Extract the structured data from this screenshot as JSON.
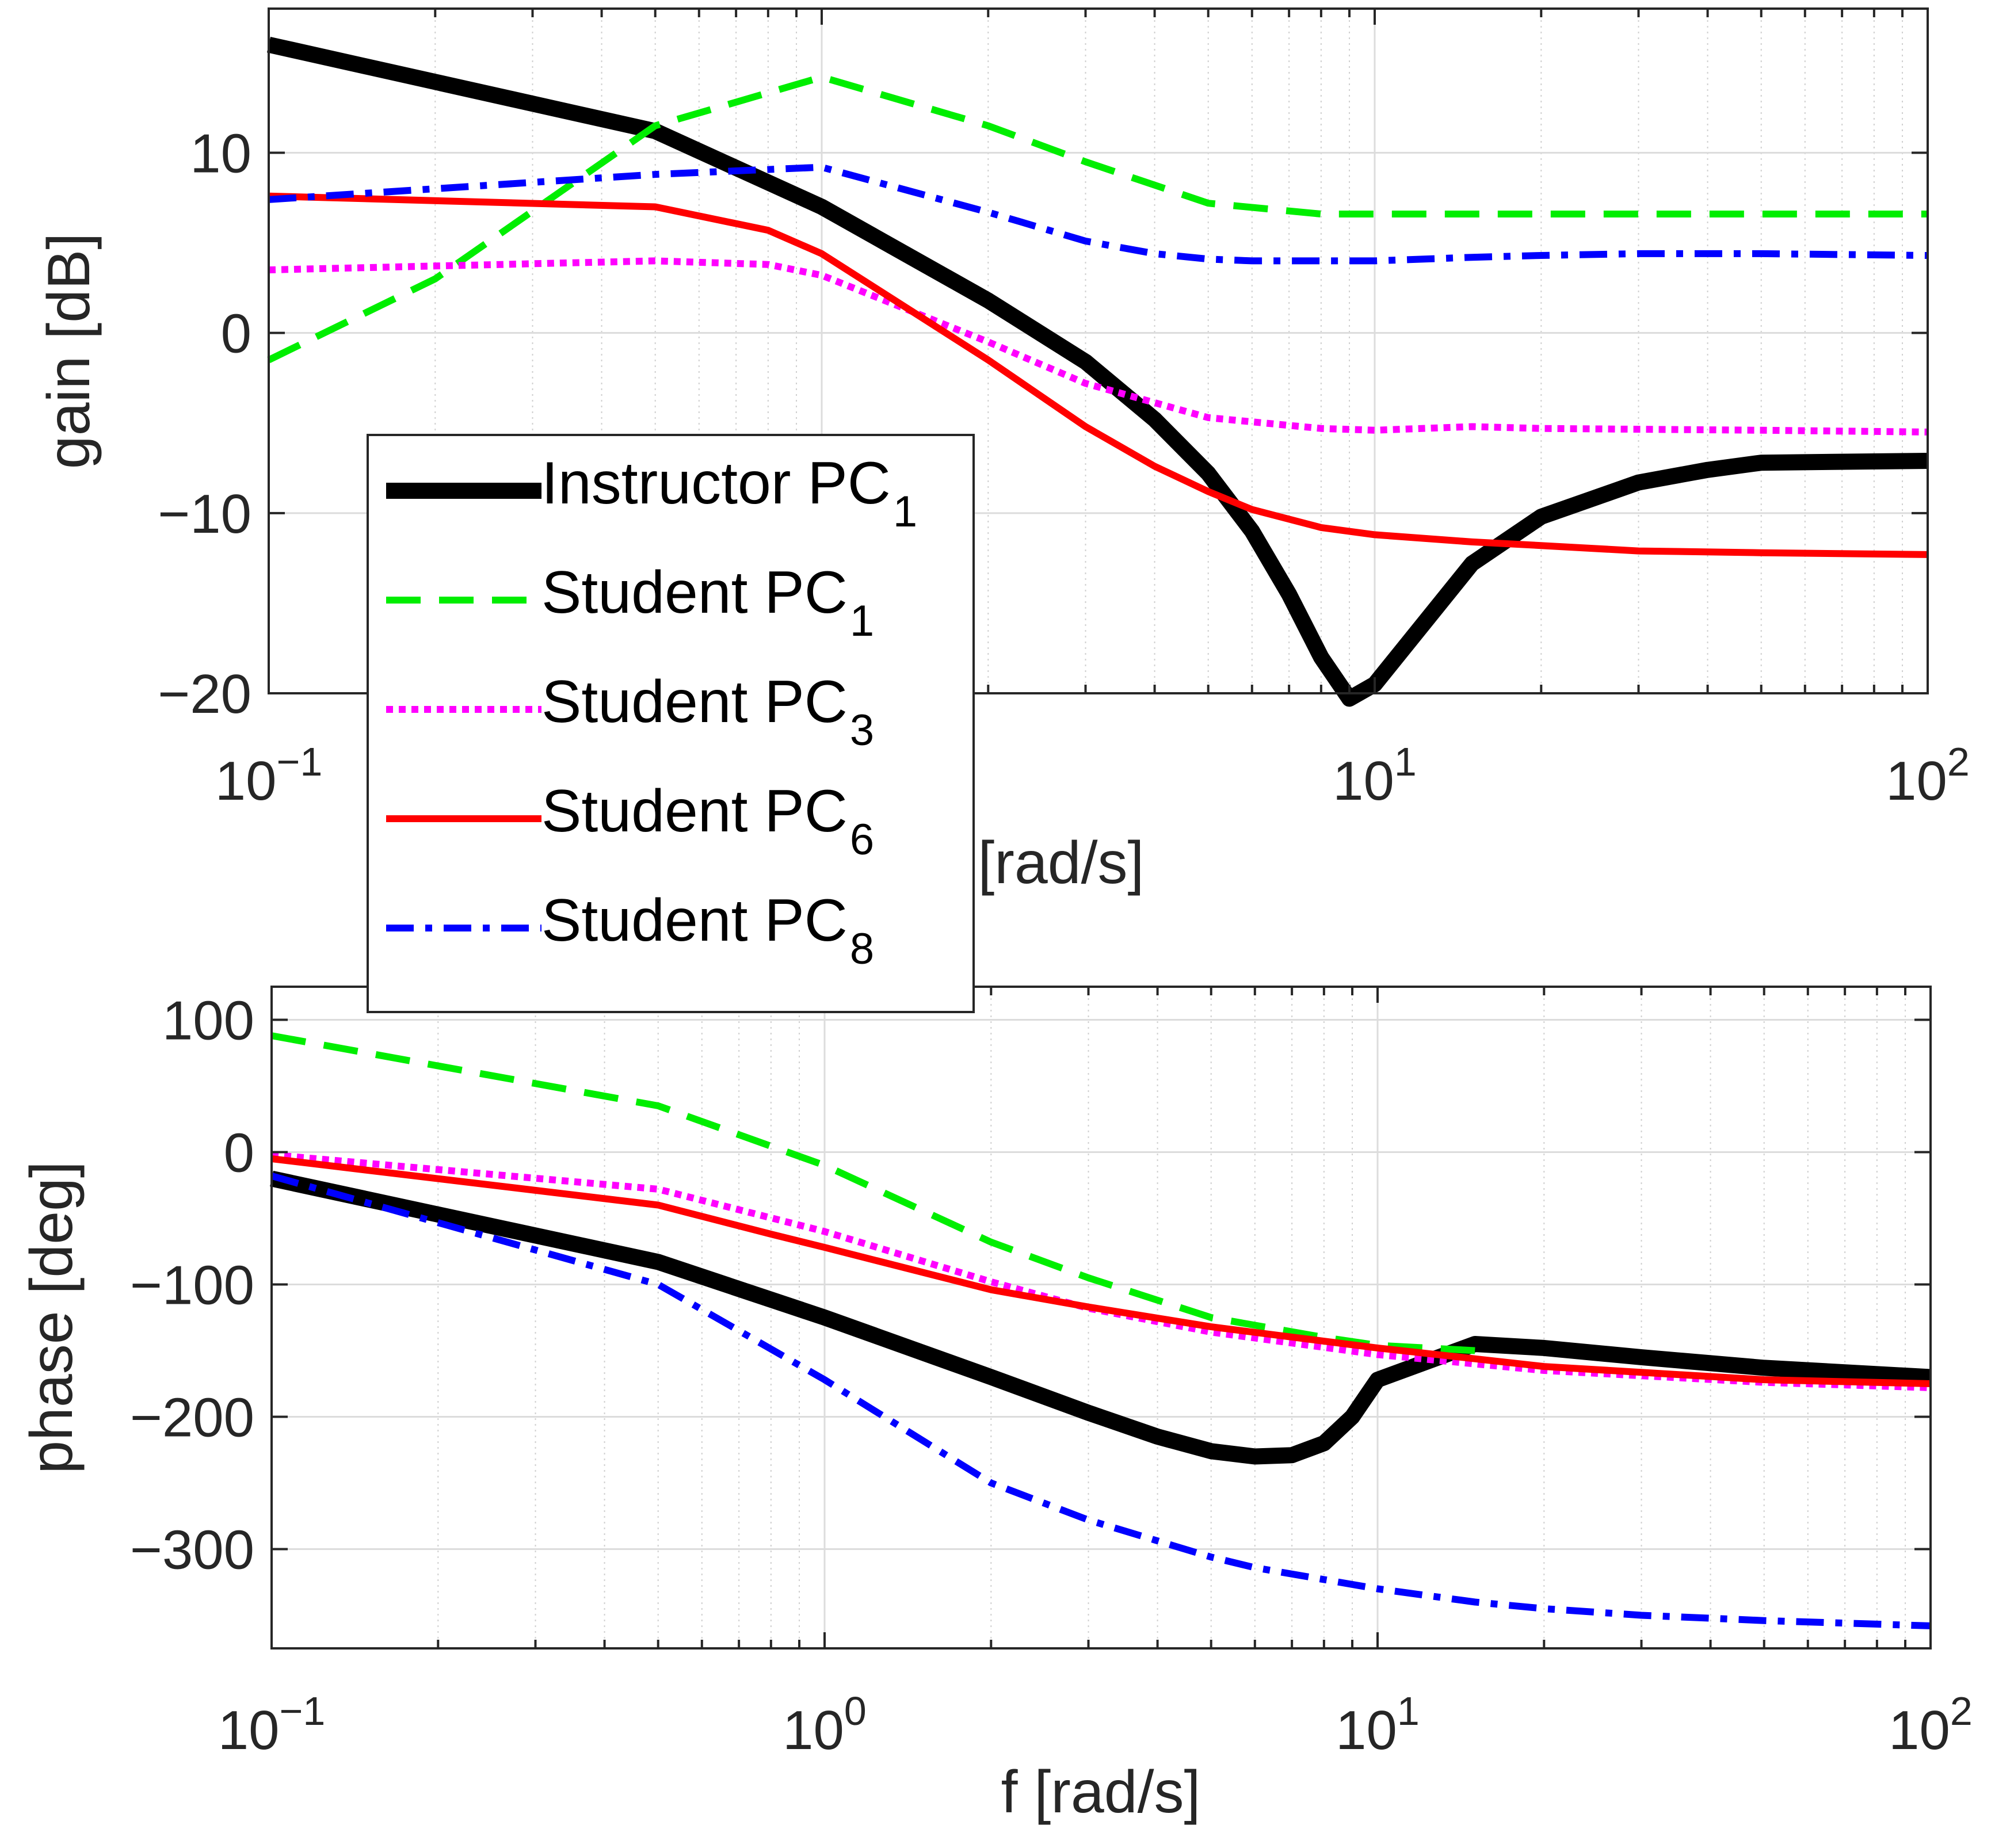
{
  "chart_data": [
    {
      "type": "line",
      "panel": "gain",
      "title": "",
      "xlabel": "f [rad/s]",
      "ylabel": "gain [dB]",
      "xscale": "log",
      "xlim": [
        0.1,
        100
      ],
      "ylim": [
        -20,
        18
      ],
      "grid": true,
      "x_tick_labels": [
        {
          "base": "10",
          "exp": "−1"
        },
        {
          "base": "10",
          "exp": "1"
        },
        {
          "base": "10",
          "exp": "2"
        }
      ],
      "y_tick_labels": [
        "−20",
        "−10",
        "0",
        "10"
      ],
      "series": [
        {
          "name": "Instructor PC1",
          "color": "#000000",
          "style": "solid",
          "width": "thick",
          "x": [
            0.1,
            0.5,
            1,
            2,
            3,
            4,
            5,
            6,
            7,
            8,
            9,
            10,
            15,
            20,
            30,
            40,
            50,
            100
          ],
          "y": [
            16,
            11.2,
            7,
            1.8,
            -1.6,
            -4.8,
            -7.8,
            -11,
            -14.5,
            -18,
            -20.3,
            -19.5,
            -12.8,
            -10.2,
            -8.3,
            -7.6,
            -7.2,
            -7.1
          ]
        },
        {
          "name": "Student PC1",
          "color": "#00ee00",
          "style": "dashed",
          "width": "normal",
          "x": [
            0.1,
            0.2,
            0.5,
            1,
            2,
            3,
            5,
            8,
            10,
            20,
            50,
            100
          ],
          "y": [
            -1.5,
            3,
            11.5,
            14.2,
            11.5,
            9.5,
            7.2,
            6.6,
            6.6,
            6.6,
            6.6,
            6.6
          ]
        },
        {
          "name": "Student PC3",
          "color": "#ff00ff",
          "style": "dotted",
          "width": "normal",
          "x": [
            0.1,
            0.5,
            0.8,
            1,
            2,
            3,
            5,
            8,
            10,
            15,
            20,
            50,
            100
          ],
          "y": [
            3.5,
            4,
            3.8,
            3.2,
            -0.5,
            -2.8,
            -4.7,
            -5.3,
            -5.4,
            -5.2,
            -5.3,
            -5.4,
            -5.5
          ]
        },
        {
          "name": "Student PC6",
          "color": "#ff0000",
          "style": "solid",
          "width": "normal",
          "x": [
            0.1,
            0.5,
            0.8,
            1,
            2,
            3,
            4,
            5,
            6,
            8,
            10,
            15,
            20,
            30,
            50,
            100
          ],
          "y": [
            7.6,
            7,
            5.7,
            4.4,
            -1.5,
            -5.2,
            -7.4,
            -8.8,
            -9.8,
            -10.8,
            -11.2,
            -11.6,
            -11.8,
            -12.1,
            -12.2,
            -12.3
          ]
        },
        {
          "name": "Student PC8",
          "color": "#0000ff",
          "style": "dash-dot",
          "width": "normal",
          "x": [
            0.1,
            0.5,
            1,
            2,
            3,
            4,
            5,
            6,
            8,
            10,
            15,
            20,
            30,
            50,
            100
          ],
          "y": [
            7.4,
            8.8,
            9.2,
            6.7,
            5.1,
            4.4,
            4.1,
            4,
            4,
            4,
            4.2,
            4.3,
            4.4,
            4.4,
            4.3
          ]
        }
      ]
    },
    {
      "type": "line",
      "panel": "phase",
      "title": "",
      "xlabel": "f [rad/s]",
      "ylabel": "phase [deg]",
      "xscale": "log",
      "xlim": [
        0.1,
        100
      ],
      "ylim": [
        -375,
        125
      ],
      "grid": true,
      "x_tick_labels": [
        {
          "base": "10",
          "exp": "−1"
        },
        {
          "base": "10",
          "exp": "0"
        },
        {
          "base": "10",
          "exp": "1"
        },
        {
          "base": "10",
          "exp": "2"
        }
      ],
      "y_tick_labels": [
        "−300",
        "−200",
        "−100",
        "0",
        "100"
      ],
      "series": [
        {
          "name": "Instructor PC1",
          "color": "#000000",
          "style": "solid",
          "width": "thick",
          "x": [
            0.1,
            0.5,
            1,
            2,
            3,
            4,
            5,
            6,
            7,
            8,
            9,
            10,
            15,
            20,
            30,
            50,
            100
          ],
          "y": [
            -20,
            -83,
            -125,
            -170,
            -197,
            -215,
            -226,
            -230,
            -229,
            -220,
            -200,
            -172,
            -145,
            -148,
            -155,
            -163,
            -170
          ]
        },
        {
          "name": "Student PC1",
          "color": "#00ee00",
          "style": "dashed",
          "width": "normal",
          "x": [
            0.1,
            0.5,
            1,
            2,
            3,
            5,
            8,
            10,
            15
          ],
          "y": [
            88,
            35,
            -10,
            -68,
            -95,
            -125,
            -140,
            -146,
            -150
          ]
        },
        {
          "name": "Student PC3",
          "color": "#ff00ff",
          "style": "dotted",
          "width": "normal",
          "x": [
            0.1,
            0.5,
            1,
            2,
            3,
            5,
            10,
            20,
            50,
            100
          ],
          "y": [
            -2,
            -28,
            -60,
            -98,
            -118,
            -136,
            -153,
            -165,
            -174,
            -178
          ]
        },
        {
          "name": "Student PC6",
          "color": "#ff0000",
          "style": "solid",
          "width": "normal",
          "x": [
            0.1,
            0.5,
            0.8,
            1,
            2,
            3,
            5,
            10,
            20,
            50,
            100
          ],
          "y": [
            -5,
            -40,
            -62,
            -72,
            -104,
            -117,
            -132,
            -148,
            -162,
            -172,
            -175
          ]
        },
        {
          "name": "Student PC8",
          "color": "#0000ff",
          "style": "dash-dot",
          "width": "normal",
          "x": [
            0.1,
            0.5,
            1,
            2,
            3,
            5,
            6,
            8,
            10,
            15,
            20,
            30,
            50,
            100
          ],
          "y": [
            -18,
            -100,
            -172,
            -250,
            -278,
            -306,
            -314,
            -323,
            -330,
            -340,
            -345,
            -350,
            -354,
            -358
          ]
        }
      ]
    }
  ],
  "legend": {
    "items": [
      {
        "text": "Instructor PC",
        "sub": "1",
        "color": "#000000"
      },
      {
        "text": "Student PC",
        "sub": "1",
        "color": "#00ee00"
      },
      {
        "text": "Student PC",
        "sub": "3",
        "color": "#ff00ff"
      },
      {
        "text": "Student PC",
        "sub": "6",
        "color": "#ff0000"
      },
      {
        "text": "Student PC",
        "sub": "8",
        "color": "#0000ff"
      }
    ]
  }
}
